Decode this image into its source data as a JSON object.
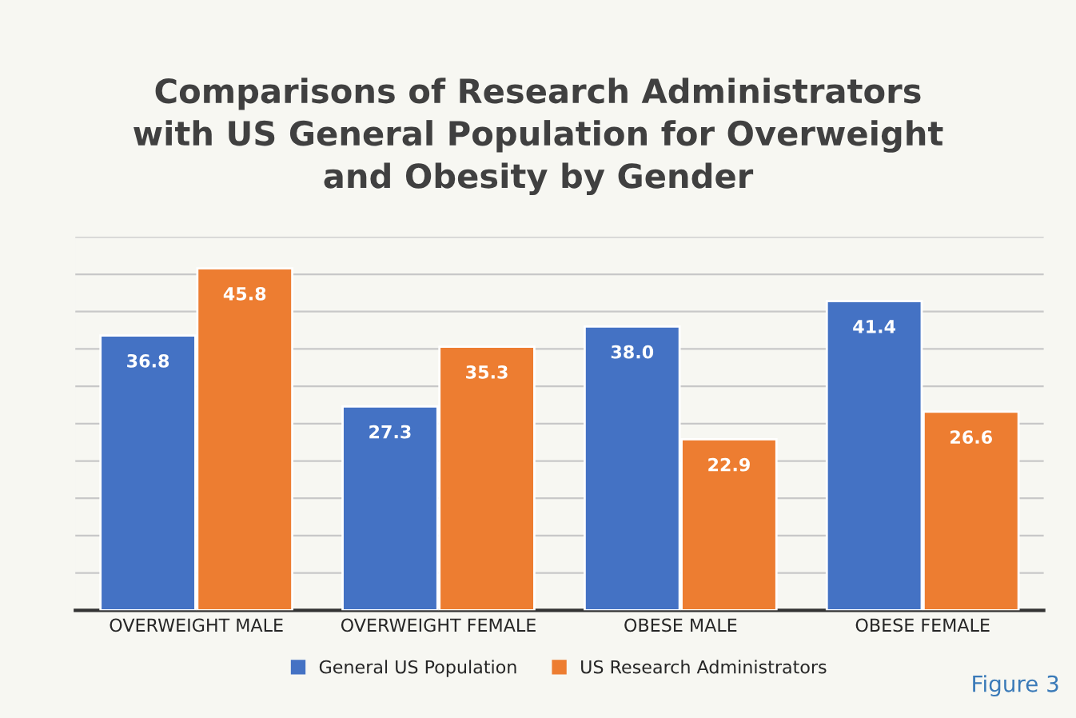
{
  "chart_data": {
    "type": "bar",
    "title": "Comparisons of Research Administrators\nwith US General Population for Overweight\nand Obesity by Gender",
    "categories": [
      "OVERWEIGHT MALE",
      "OVERWEIGHT FEMALE",
      "OBESE MALE",
      "OBESE FEMALE"
    ],
    "series": [
      {
        "name": "General US Population",
        "color": "#4472c4",
        "values": [
          36.8,
          27.3,
          38.0,
          41.4
        ],
        "value_labels": [
          "36.8",
          "27.3",
          "38.0",
          "41.4"
        ]
      },
      {
        "name": "US Research Administrators",
        "color": "#ed7d31",
        "values": [
          45.8,
          35.3,
          22.9,
          26.6
        ],
        "value_labels": [
          "45.8",
          "35.3",
          "22.9",
          "26.6"
        ]
      }
    ],
    "ylim": [
      0,
      50
    ],
    "yticks": [
      {
        "value": 0,
        "label": null
      },
      {
        "value": 5,
        "label": null
      },
      {
        "value": 10,
        "label": null
      },
      {
        "value": 15,
        "label": null
      },
      {
        "value": 20,
        "label": null
      },
      {
        "value": 25,
        "label": null
      },
      {
        "value": 30,
        "label": null
      },
      {
        "value": 35,
        "label": null
      },
      {
        "value": 40,
        "label": null
      },
      {
        "value": 45,
        "label": null
      },
      {
        "value": 50,
        "label": null
      }
    ],
    "grid": "y",
    "legend": "bottom",
    "tick_labels": "x",
    "annotations": [
      "Figure 3"
    ]
  }
}
